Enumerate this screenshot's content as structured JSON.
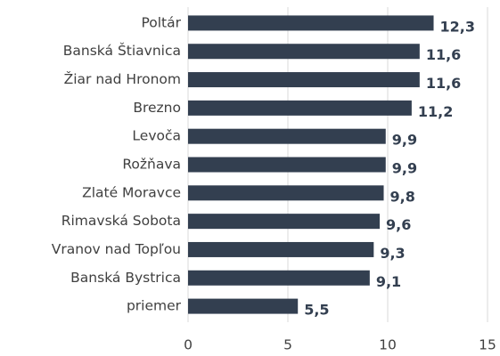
{
  "chart_data": {
    "type": "bar",
    "orientation": "horizontal",
    "categories": [
      "Poltár",
      "Banská Štiavnica",
      "Žiar nad Hronom",
      "Brezno",
      "Levoča",
      "Rožňava",
      "Zlaté Moravce",
      "Rimavská Sobota",
      "Vranov nad Topľou",
      "Banská Bystrica",
      "priemer"
    ],
    "values": [
      12.3,
      11.6,
      11.6,
      11.2,
      9.9,
      9.9,
      9.8,
      9.6,
      9.3,
      9.1,
      5.5
    ],
    "value_labels": [
      "12,3",
      "11,6",
      "11,6",
      "11,2",
      "9,9",
      "9,9",
      "9,8",
      "9,6",
      "9,3",
      "9,1",
      "5,5"
    ],
    "color": "#333f50",
    "xlim": [
      0,
      15
    ],
    "xticks": [
      0,
      5,
      10,
      15
    ],
    "grid": true
  }
}
